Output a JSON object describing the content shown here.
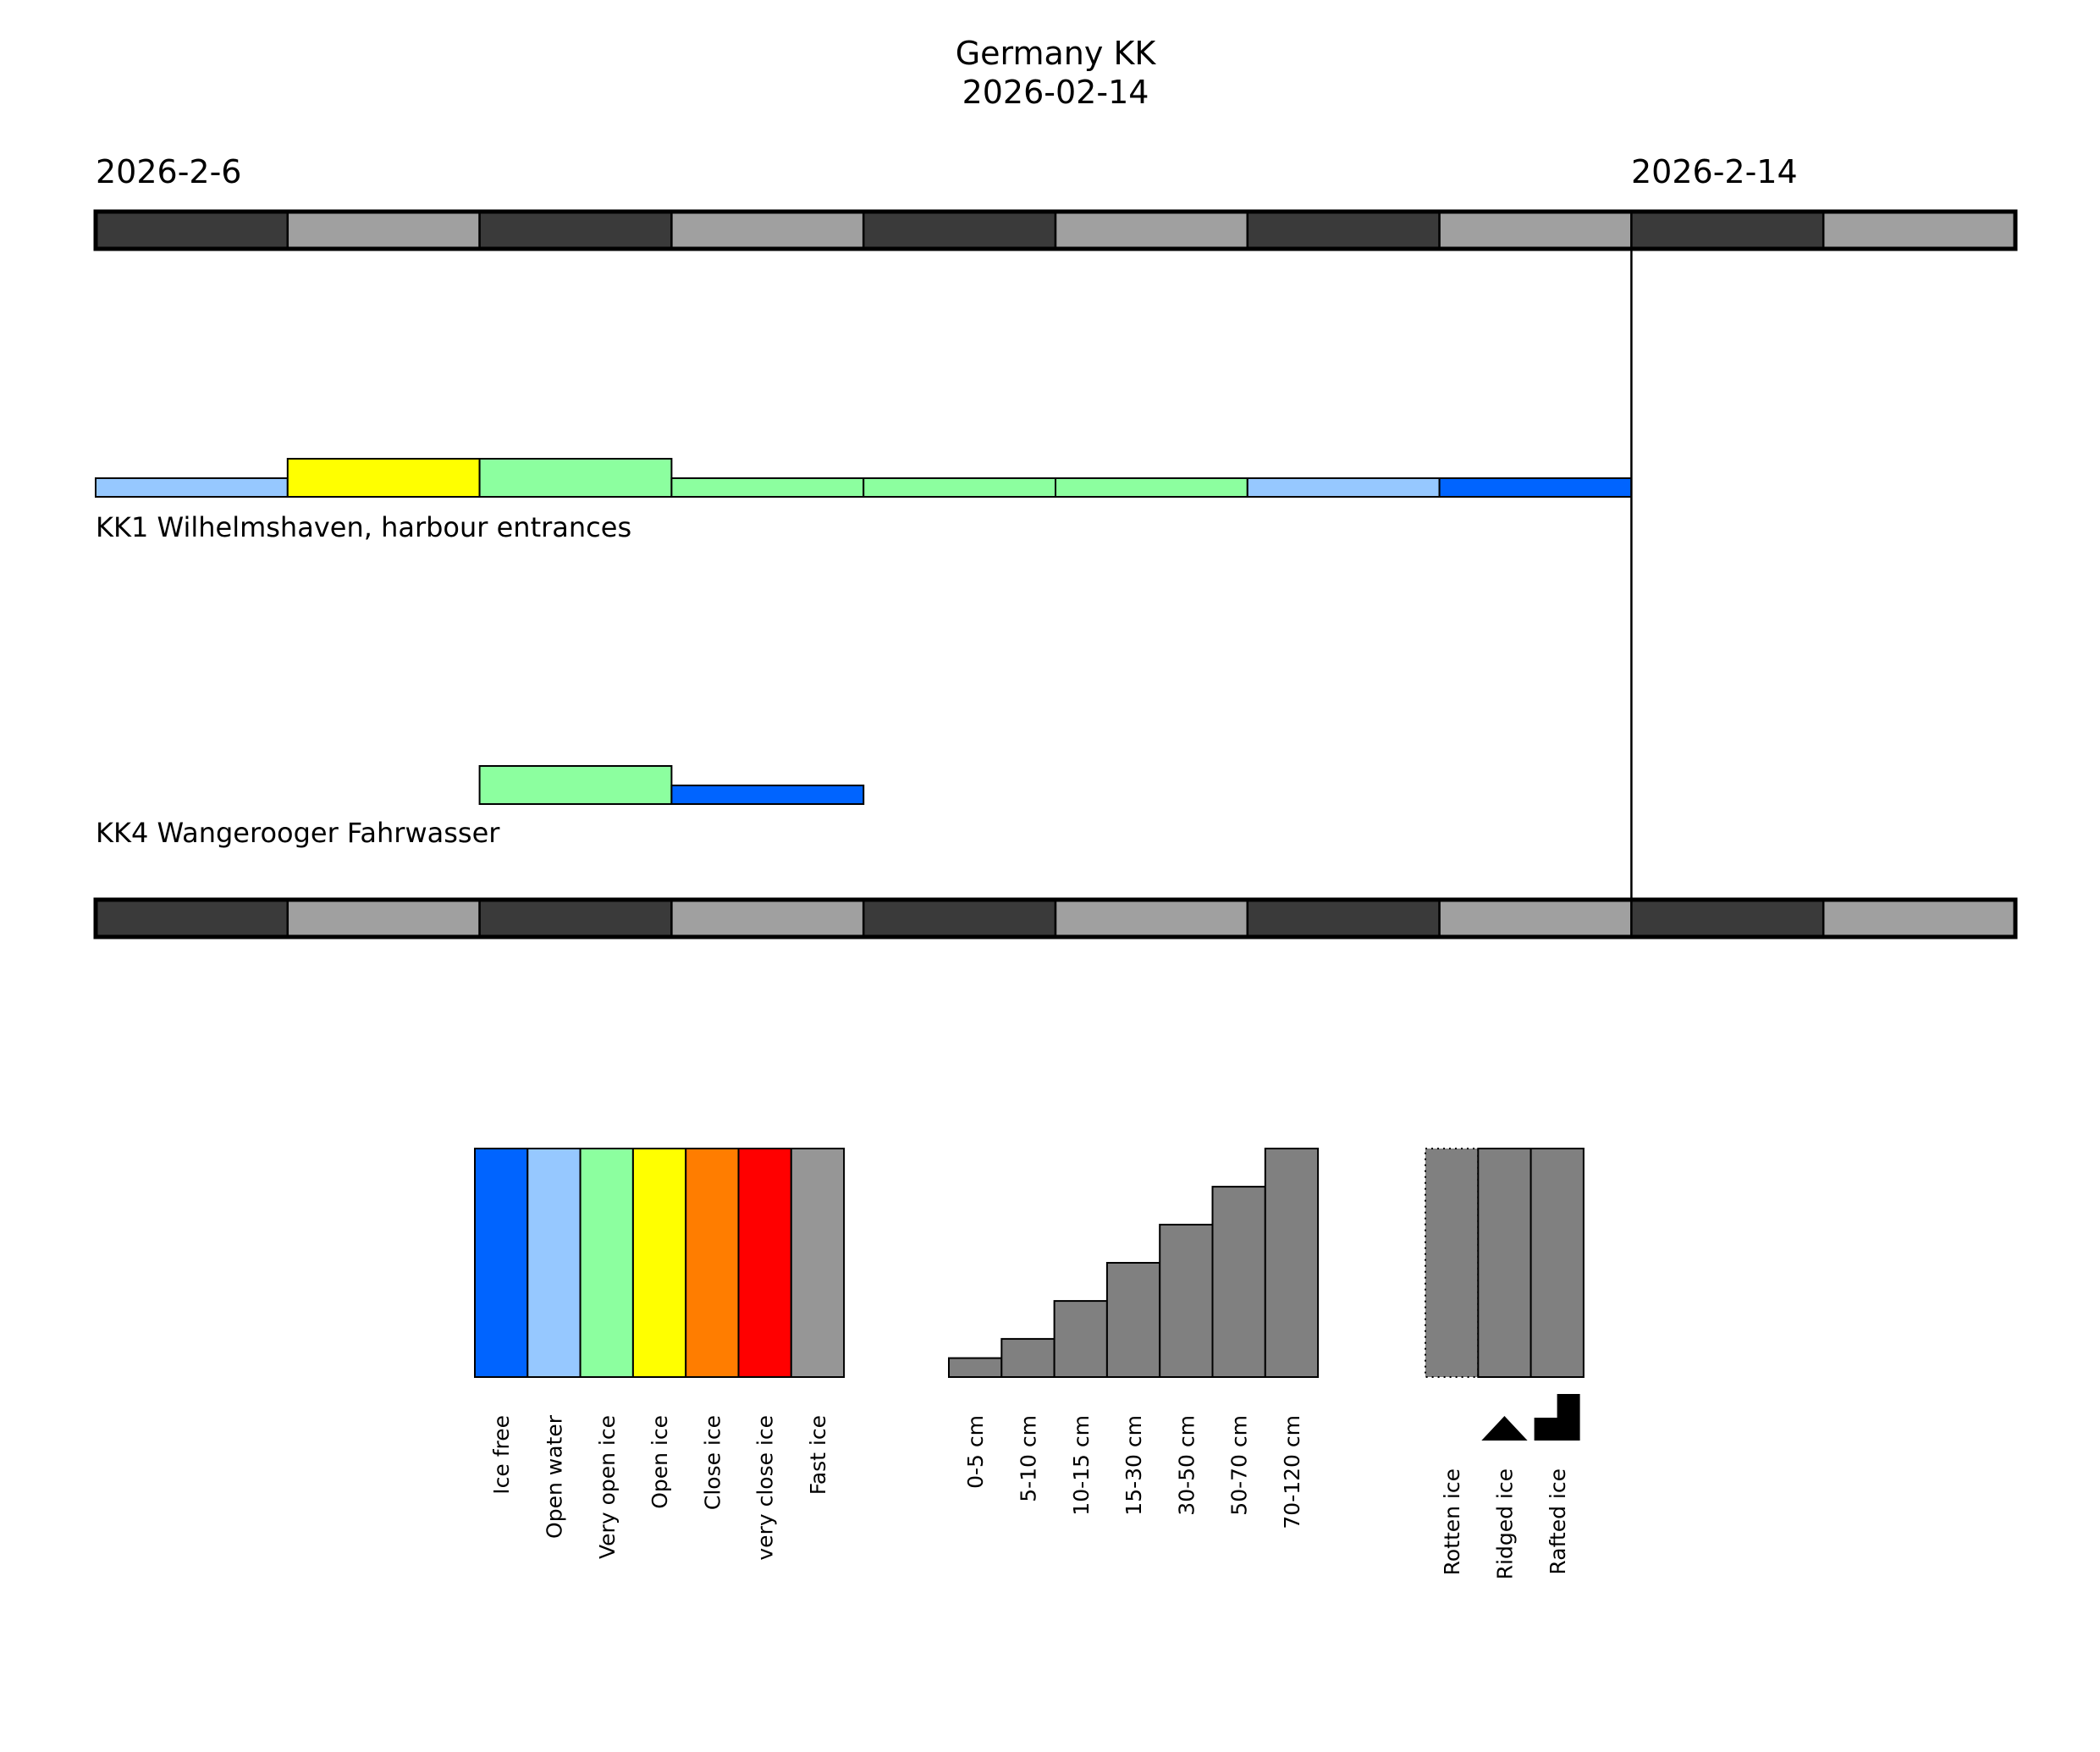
{
  "chart_data": {
    "type": "timeline",
    "title": "Germany KK",
    "subtitle": "2026-02-14",
    "start_date_label": "2026-2-6",
    "current_date_label": "2026-2-14",
    "num_days": 10,
    "current_day_index": 8,
    "tracks": [
      {
        "label": "KK1 Wilhelmshaven, harbour entrances",
        "segments": [
          {
            "day": 0,
            "category": "Open water",
            "level": 1
          },
          {
            "day": 1,
            "category": "Open ice",
            "level": 2
          },
          {
            "day": 2,
            "category": "Very open ice",
            "level": 2
          },
          {
            "day": 3,
            "category": "Very open ice",
            "level": 1
          },
          {
            "day": 4,
            "category": "Very open ice",
            "level": 1
          },
          {
            "day": 5,
            "category": "Very open ice",
            "level": 1
          },
          {
            "day": 6,
            "category": "Open water",
            "level": 1
          },
          {
            "day": 7,
            "category": "Ice free",
            "level": 1
          }
        ]
      },
      {
        "label": "KK4 Wangerooger Fahrwasser",
        "segments": [
          {
            "day": 2,
            "category": "Very open ice",
            "level": 2
          },
          {
            "day": 3,
            "category": "Ice free",
            "level": 1
          }
        ]
      }
    ],
    "day_band_colors": [
      "#3a3a3a",
      "#a0a0a0"
    ],
    "concentration_legend": [
      {
        "label": "Ice free",
        "color": "#0064ff"
      },
      {
        "label": "Open water",
        "color": "#96c8ff"
      },
      {
        "label": "Very open ice",
        "color": "#8cff9f"
      },
      {
        "label": "Open ice",
        "color": "#ffff00"
      },
      {
        "label": "Close ice",
        "color": "#ff7d00"
      },
      {
        "label": "very close ice",
        "color": "#ff0000"
      },
      {
        "label": "Fast ice",
        "color": "#969696"
      }
    ],
    "thickness_legend": [
      {
        "label": "0-5 cm",
        "fraction": 0.083
      },
      {
        "label": "5-10 cm",
        "fraction": 0.167
      },
      {
        "label": "10-15 cm",
        "fraction": 0.333
      },
      {
        "label": "15-30 cm",
        "fraction": 0.5
      },
      {
        "label": "30-50 cm",
        "fraction": 0.667
      },
      {
        "label": "50-70 cm",
        "fraction": 0.833
      },
      {
        "label": "70-120 cm",
        "fraction": 1.0
      }
    ],
    "thickness_color": "#808080",
    "feature_legend": [
      {
        "label": "Rotten ice",
        "symbol": "dotted-border"
      },
      {
        "label": "Ridged ice",
        "symbol": "triangle"
      },
      {
        "label": "Rafted ice",
        "symbol": "step"
      }
    ]
  }
}
